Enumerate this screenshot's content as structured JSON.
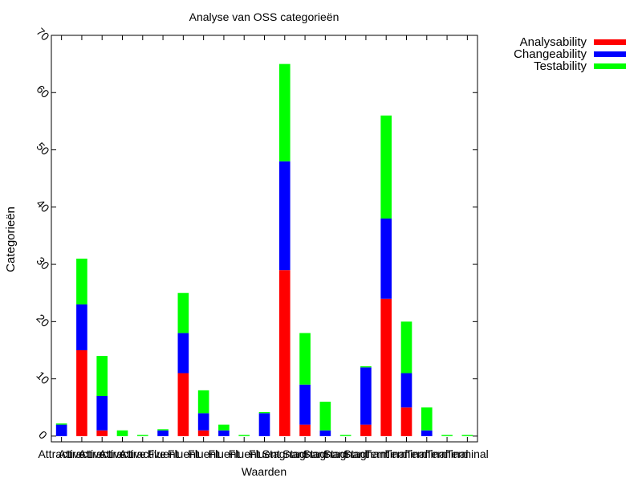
{
  "chart_data": {
    "type": "bar",
    "stacked": true,
    "title": "Analyse van OSS categorieën",
    "xlabel": "Waarden",
    "ylabel": "Categorieën",
    "ylim": [
      -1,
      70
    ],
    "yticks": [
      0,
      10,
      20,
      30,
      40,
      50,
      60,
      70
    ],
    "grid": false,
    "legend_position": "outside-top-right",
    "categories": [
      "Attractive",
      "Attractive",
      "Attractive",
      "Attractive",
      "Attractive",
      "Fluent",
      "Fluent",
      "Fluent",
      "Fluent",
      "Fluent",
      "Fluent",
      "Stagnant",
      "Stagnant",
      "Stagnant",
      "Stagnant",
      "Stagnant",
      "Terminal",
      "Terminal",
      "Terminal",
      "Terminal",
      "Terminal"
    ],
    "series": [
      {
        "name": "Analysability",
        "color": "#ff0000",
        "values": [
          0,
          15,
          1,
          0,
          0,
          0,
          11,
          1,
          0,
          0,
          0,
          29,
          2,
          0,
          0,
          2,
          24,
          5,
          0,
          0,
          0
        ]
      },
      {
        "name": "Changeability",
        "color": "#0000ff",
        "values": [
          2,
          8,
          6,
          0,
          0,
          1,
          7,
          3,
          1,
          0,
          4,
          19,
          7,
          1,
          0,
          10,
          14,
          6,
          1,
          0,
          0
        ]
      },
      {
        "name": "Testability",
        "color": "#00ff00",
        "values": [
          0.2,
          8,
          7,
          1,
          0.2,
          0.2,
          7,
          4,
          1,
          0.2,
          0.2,
          17,
          9,
          5,
          0.2,
          0.2,
          18,
          9,
          4,
          0.2,
          0.2
        ]
      }
    ]
  }
}
